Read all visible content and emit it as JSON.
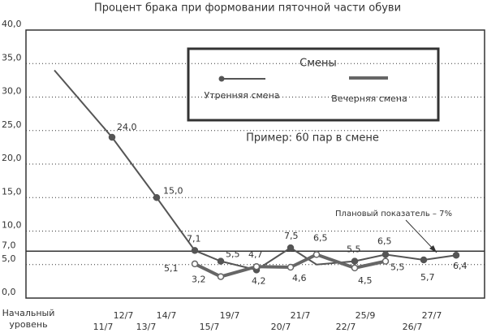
{
  "chart_data": {
    "type": "line",
    "title": "Процент брака при формовании пяточной части обуви",
    "categories": [
      [
        "Начальный уровень"
      ],
      [
        "11/7",
        "12/7"
      ],
      [
        "13/7",
        "14/7"
      ],
      null,
      [
        "15/7",
        "19/7"
      ],
      null,
      [
        "20/7",
        "21/7"
      ],
      null,
      [
        "22/7",
        "25/9"
      ],
      null,
      [
        "26/7",
        "27/7"
      ],
      null
    ],
    "series": [
      {
        "name": "Утренняя смена",
        "color": "#555555",
        "values": [
          34,
          24.0,
          15.0,
          7.1,
          5.5,
          4.2,
          7.5,
          5.0,
          5.5,
          6.5,
          5.7,
          6.4
        ],
        "value_labels": [
          null,
          "24,0",
          "15,0",
          "7,1",
          "5,5",
          "4,2",
          "7,5",
          null,
          "5,5",
          "6,5",
          "5,7",
          "6,4"
        ]
      },
      {
        "name": "Вечерняя смена",
        "color": "#666666",
        "values": [
          null,
          null,
          null,
          5.1,
          3.2,
          4.7,
          4.6,
          6.5,
          4.5,
          5.5,
          null,
          null
        ],
        "value_labels": [
          null,
          null,
          null,
          "5,1",
          "3,2",
          "4,7",
          "4,6",
          "6,5",
          "4,5",
          "5,5",
          null,
          null
        ]
      }
    ],
    "legend_title": "Смены",
    "annotation": "Пример: 60 пар в смене",
    "target": 7,
    "target_label": "Плановый показатель – 7%",
    "ylim": [
      0,
      40
    ],
    "yticks": [
      {
        "value": 0,
        "label": "0,0"
      },
      {
        "value": 5,
        "label": "5,0"
      },
      {
        "value": 7,
        "label": "7,0"
      },
      {
        "value": 10,
        "label": "10,0"
      },
      {
        "value": 15,
        "label": "15,0"
      },
      {
        "value": 20,
        "label": "20,0"
      },
      {
        "value": 25,
        "label": "25,0"
      },
      {
        "value": 30,
        "label": "30,0"
      },
      {
        "value": 35,
        "label": "35,0"
      },
      {
        "value": 40,
        "label": "40,0"
      }
    ],
    "grid": true
  }
}
